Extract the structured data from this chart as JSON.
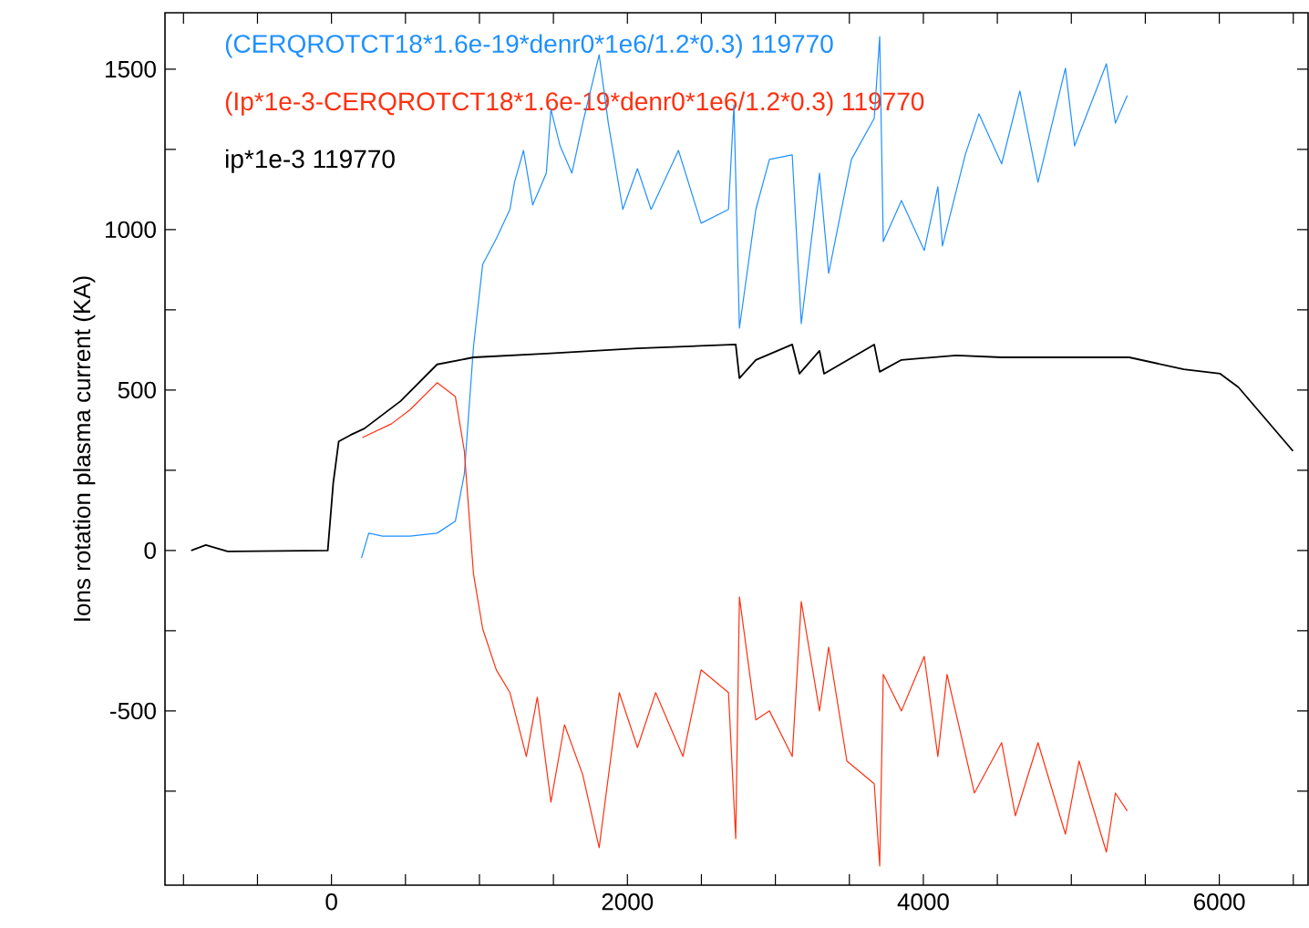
{
  "chart_data": {
    "type": "line",
    "ylabel": "Ions rotation plasma current (KA)",
    "xlim": [
      -1125,
      6600
    ],
    "ylim": [
      -1043,
      1676
    ],
    "xticks": [
      {
        "value": -1000,
        "label": null
      },
      {
        "value": -500,
        "label": null
      },
      0,
      {
        "value": 500,
        "label": null
      },
      {
        "value": 1000,
        "label": null
      },
      {
        "value": 1500,
        "label": null
      },
      2000,
      {
        "value": 2500,
        "label": null
      },
      {
        "value": 3000,
        "label": null
      },
      {
        "value": 3500,
        "label": null
      },
      4000,
      {
        "value": 4500,
        "label": null
      },
      {
        "value": 5000,
        "label": null
      },
      {
        "value": 5500,
        "label": null
      },
      6000,
      {
        "value": 6500,
        "label": null
      }
    ],
    "yticks": [
      {
        "value": -750,
        "label": null
      },
      -500,
      {
        "value": -250,
        "label": null
      },
      0,
      {
        "value": 250,
        "label": null
      },
      500,
      {
        "value": 750,
        "label": null
      },
      1000,
      {
        "value": 1250,
        "label": null
      },
      1500
    ],
    "legend": "top left",
    "line_style": "solid",
    "marker": "none",
    "series": [
      {
        "name": "(CERQROTCT18*1.6e-19*denr0*1e6/1.2*0.3)   119770",
        "color": "#1e90ff",
        "x": [
          203,
          252,
          345,
          529,
          714,
          837,
          898,
          960,
          1022,
          1114,
          1206,
          1237,
          1298,
          1360,
          1452,
          1483,
          1545,
          1625,
          1698,
          1809,
          1871,
          1969,
          2068,
          2160,
          2345,
          2498,
          2683,
          2720,
          2757,
          2868,
          2960,
          3114,
          3175,
          3298,
          3360,
          3514,
          3668,
          3705,
          3729,
          3852,
          4006,
          4098,
          4129,
          4283,
          4375,
          4529,
          4652,
          4775,
          4960,
          5022,
          5237,
          5298,
          5378
        ],
        "values": [
          -23,
          54,
          45,
          45,
          54,
          91,
          239,
          636,
          892,
          972,
          1063,
          1148,
          1247,
          1077,
          1176,
          1375,
          1261,
          1176,
          1332,
          1545,
          1332,
          1063,
          1190,
          1063,
          1247,
          1020,
          1063,
          1389,
          693,
          1063,
          1219,
          1233,
          707,
          1176,
          864,
          1219,
          1347,
          1602,
          963,
          1091,
          935,
          1134,
          949,
          1233,
          1361,
          1205,
          1432,
          1148,
          1503,
          1261,
          1517,
          1332,
          1418
        ]
      },
      {
        "name": "(Ip*1e-3-CERQROTCT18*1.6e-19*denr0*1e6/1.2*0.3)   119770",
        "color": "#ff3010",
        "x": [
          209,
          406,
          529,
          714,
          837,
          898,
          960,
          1022,
          1114,
          1206,
          1317,
          1391,
          1483,
          1575,
          1698,
          1809,
          1945,
          2068,
          2191,
          2375,
          2498,
          2683,
          2732,
          2757,
          2868,
          2960,
          3114,
          3175,
          3298,
          3360,
          3483,
          3668,
          3705,
          3729,
          3852,
          4006,
          4098,
          4160,
          4345,
          4529,
          4622,
          4775,
          4960,
          5052,
          5237,
          5298,
          5378
        ],
        "values": [
          352,
          395,
          438,
          523,
          480,
          310,
          -74,
          -244,
          -372,
          -443,
          -642,
          -457,
          -784,
          -543,
          -699,
          -926,
          -443,
          -614,
          -443,
          -642,
          -372,
          -443,
          -898,
          -145,
          -528,
          -500,
          -642,
          -159,
          -500,
          -301,
          -656,
          -727,
          -983,
          -386,
          -500,
          -330,
          -642,
          -386,
          -756,
          -599,
          -827,
          -599,
          -884,
          -656,
          -940,
          -756,
          -812
        ]
      },
      {
        "name": "ip*1e-3   119770",
        "color": "#000000",
        "x": [
          -948,
          -849,
          -702,
          -25,
          12,
          49,
          129,
          222,
          468,
          714,
          960,
          1452,
          2068,
          2732,
          2757,
          2868,
          3114,
          3163,
          3298,
          3329,
          3668,
          3705,
          3852,
          4222,
          4529,
          5145,
          5391,
          5760,
          6006,
          6129,
          6498
        ],
        "values": [
          0,
          17,
          -3,
          0,
          210,
          340,
          360,
          380,
          466,
          580,
          602,
          614,
          630,
          642,
          537,
          594,
          642,
          551,
          622,
          551,
          642,
          557,
          594,
          608,
          602,
          602,
          602,
          565,
          551,
          509,
          310
        ]
      }
    ]
  }
}
